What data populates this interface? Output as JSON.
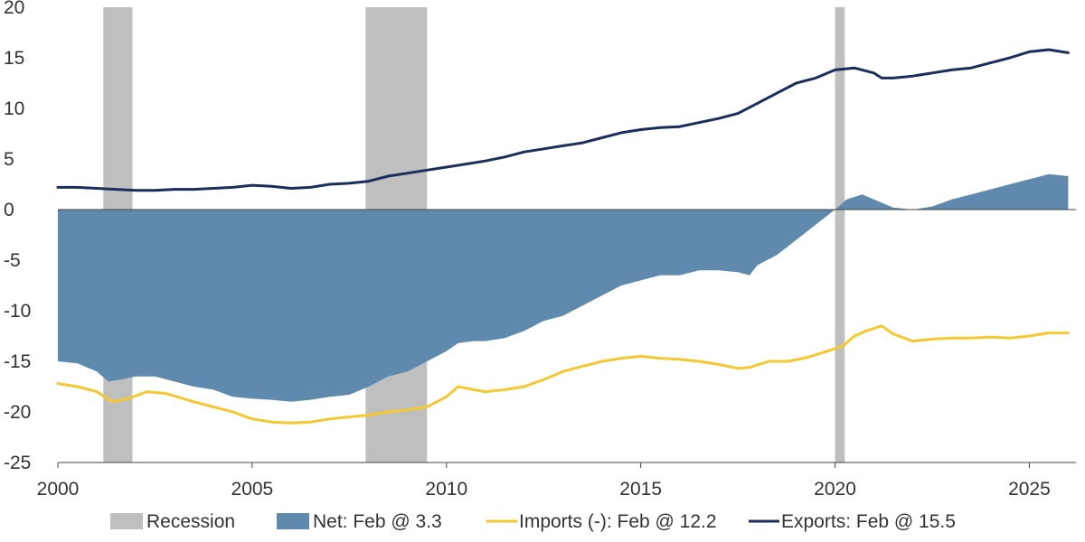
{
  "chart_data": {
    "type": "line",
    "title": "",
    "xlabel": "",
    "ylabel": "",
    "xlim": [
      2000,
      2026.2
    ],
    "ylim": [
      -25,
      20
    ],
    "x_ticks": [
      {
        "value": 2000,
        "label": "2000"
      },
      {
        "value": 2005,
        "label": "2005"
      },
      {
        "value": 2010,
        "label": "2010"
      },
      {
        "value": 2015,
        "label": "2015"
      },
      {
        "value": 2020,
        "label": "2020"
      },
      {
        "value": 2025,
        "label": "2025"
      }
    ],
    "y_ticks": [
      {
        "value": 20,
        "label": "20"
      },
      {
        "value": 15,
        "label": "15"
      },
      {
        "value": 10,
        "label": "10"
      },
      {
        "value": 5,
        "label": "5"
      },
      {
        "value": 0,
        "label": "0"
      },
      {
        "value": -5,
        "label": "-5"
      },
      {
        "value": -10,
        "label": "-10"
      },
      {
        "value": -15,
        "label": "-15"
      },
      {
        "value": -20,
        "label": "-20"
      },
      {
        "value": -25,
        "label": "-25"
      }
    ],
    "grid": false,
    "legend_position": "bottom",
    "recessions": [
      {
        "start": 2001.17,
        "end": 2001.92
      },
      {
        "start": 2007.92,
        "end": 2009.5
      },
      {
        "start": 2020.0,
        "end": 2020.25
      }
    ],
    "series": [
      {
        "name": "Recession",
        "kind": "shade",
        "color": "#bfbfbf"
      },
      {
        "name": "Net: Feb @ 3.3",
        "kind": "area",
        "color": "#5f8aad",
        "x": [
          2000,
          2000.5,
          2001,
          2001.3,
          2001.6,
          2002,
          2002.5,
          2003,
          2003.5,
          2004,
          2004.5,
          2005,
          2005.5,
          2006,
          2006.5,
          2007,
          2007.5,
          2008,
          2008.5,
          2009,
          2009.5,
          2010,
          2010.3,
          2010.7,
          2011,
          2011.5,
          2012,
          2012.5,
          2013,
          2013.5,
          2014,
          2014.5,
          2015,
          2015.5,
          2016,
          2016.5,
          2017,
          2017.5,
          2017.8,
          2018,
          2018.5,
          2019,
          2019.5,
          2020,
          2020.3,
          2020.7,
          2021,
          2021.5,
          2022,
          2022.5,
          2023,
          2023.5,
          2024,
          2024.5,
          2025,
          2025.5,
          2026
        ],
        "values": [
          -15,
          -15.2,
          -16,
          -17,
          -16.8,
          -16.5,
          -16.5,
          -17,
          -17.5,
          -17.8,
          -18.5,
          -18.7,
          -18.8,
          -19,
          -18.8,
          -18.5,
          -18.3,
          -17.5,
          -16.5,
          -16,
          -15,
          -14,
          -13.2,
          -13,
          -13,
          -12.7,
          -12,
          -11,
          -10.5,
          -9.5,
          -8.5,
          -7.5,
          -7,
          -6.5,
          -6.5,
          -6,
          -6,
          -6.2,
          -6.5,
          -5.5,
          -4.5,
          -3,
          -1.5,
          0,
          1,
          1.5,
          1,
          0.2,
          0,
          0.3,
          1,
          1.5,
          2,
          2.5,
          3,
          3.5,
          3.3
        ]
      },
      {
        "name": "Imports (-): Feb @ 12.2",
        "kind": "line",
        "color": "#f5c832",
        "x": [
          2000,
          2000.5,
          2001,
          2001.4,
          2001.8,
          2002.3,
          2002.8,
          2003.5,
          2004,
          2004.5,
          2005,
          2005.5,
          2006,
          2006.5,
          2007,
          2007.5,
          2008,
          2008.5,
          2009,
          2009.5,
          2010,
          2010.3,
          2010.7,
          2011,
          2011.5,
          2012,
          2012.5,
          2013,
          2013.5,
          2014,
          2014.5,
          2015,
          2015.5,
          2016,
          2016.5,
          2017,
          2017.5,
          2017.8,
          2018.3,
          2018.8,
          2019.3,
          2019.8,
          2020.2,
          2020.5,
          2020.8,
          2021.2,
          2021.5,
          2022,
          2022.5,
          2023,
          2023.5,
          2024,
          2024.5,
          2025,
          2025.5,
          2026
        ],
        "values": [
          -17.2,
          -17.5,
          -18,
          -19,
          -18.7,
          -18,
          -18.2,
          -19,
          -19.5,
          -20,
          -20.7,
          -21,
          -21.1,
          -21,
          -20.7,
          -20.5,
          -20.3,
          -20,
          -19.8,
          -19.5,
          -18.5,
          -17.5,
          -17.8,
          -18,
          -17.8,
          -17.5,
          -16.8,
          -16,
          -15.5,
          -15,
          -14.7,
          -14.5,
          -14.7,
          -14.8,
          -15,
          -15.3,
          -15.7,
          -15.6,
          -15,
          -15,
          -14.6,
          -14,
          -13.5,
          -12.5,
          -12,
          -11.5,
          -12.3,
          -13,
          -12.8,
          -12.7,
          -12.7,
          -12.6,
          -12.7,
          -12.5,
          -12.2,
          -12.2
        ]
      },
      {
        "name": "Exports: Feb @ 15.5",
        "kind": "line",
        "color": "#1b2d5b",
        "x": [
          2000,
          2000.5,
          2001,
          2001.5,
          2002,
          2002.5,
          2003,
          2003.5,
          2004,
          2004.5,
          2005,
          2005.5,
          2006,
          2006.5,
          2007,
          2007.5,
          2008,
          2008.5,
          2009,
          2009.5,
          2010,
          2010.5,
          2011,
          2011.5,
          2012,
          2012.5,
          2013,
          2013.5,
          2014,
          2014.5,
          2015,
          2015.5,
          2016,
          2016.5,
          2017,
          2017.5,
          2018,
          2018.5,
          2019,
          2019.5,
          2020,
          2020.5,
          2021,
          2021.2,
          2021.5,
          2022,
          2022.5,
          2023,
          2023.5,
          2024,
          2024.5,
          2025,
          2025.5,
          2026
        ],
        "values": [
          2.2,
          2.2,
          2.1,
          2,
          1.9,
          1.9,
          2,
          2,
          2.1,
          2.2,
          2.4,
          2.3,
          2.1,
          2.2,
          2.5,
          2.6,
          2.8,
          3.3,
          3.6,
          3.9,
          4.2,
          4.5,
          4.8,
          5.2,
          5.7,
          6,
          6.3,
          6.6,
          7.1,
          7.6,
          7.9,
          8.1,
          8.2,
          8.6,
          9,
          9.5,
          10.5,
          11.5,
          12.5,
          13,
          13.8,
          14,
          13.5,
          13,
          13,
          13.2,
          13.5,
          13.8,
          14,
          14.5,
          15,
          15.6,
          15.8,
          15.5
        ]
      }
    ]
  }
}
